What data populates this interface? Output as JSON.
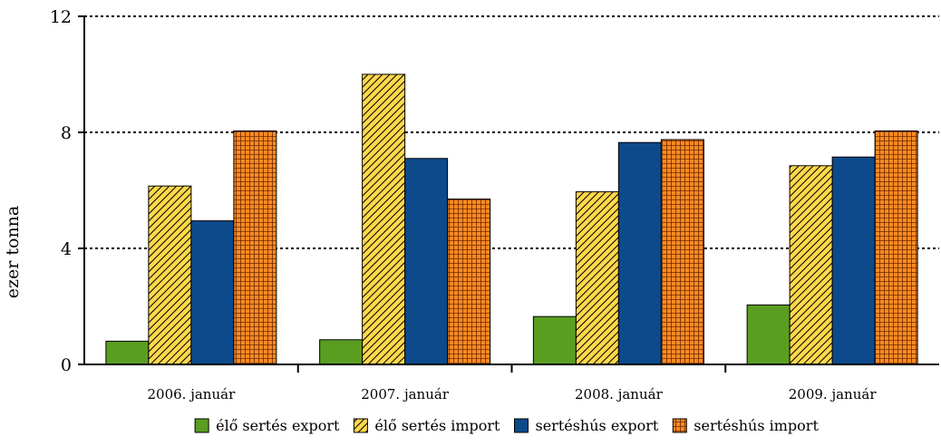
{
  "chart_data": {
    "type": "bar",
    "title": "",
    "xlabel": "",
    "ylabel": "ezer tonna",
    "ylim": [
      0,
      12
    ],
    "yticks": [
      0,
      4,
      8,
      12
    ],
    "grid": "horizontal dotted",
    "legend_position": "bottom",
    "categories": [
      "2006. január",
      "2007. január",
      "2008. január",
      "2009. január"
    ],
    "series": [
      {
        "name": "élő sertés export",
        "values": [
          0.8,
          0.85,
          1.65,
          2.05
        ],
        "color": "#5a9e21",
        "pattern": "solid"
      },
      {
        "name": "élő sertés import",
        "values": [
          6.15,
          10.0,
          5.95,
          6.85
        ],
        "color": "#ffd84a",
        "pattern": "diagonal-hatch"
      },
      {
        "name": "sertéshús export",
        "values": [
          4.95,
          7.1,
          7.65,
          7.15
        ],
        "color": "#0c4a8c",
        "pattern": "solid"
      },
      {
        "name": "sertéshús import",
        "values": [
          8.05,
          5.7,
          7.75,
          8.05
        ],
        "color": "#ff8a22",
        "pattern": "crosshatch"
      }
    ]
  }
}
